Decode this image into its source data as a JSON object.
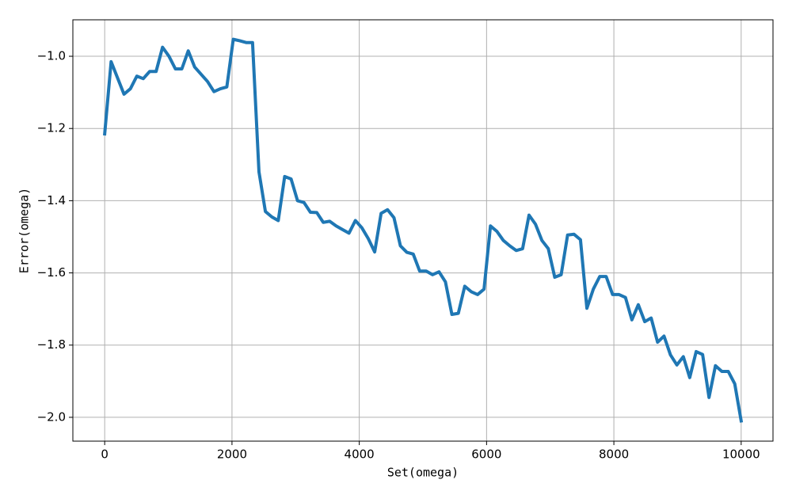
{
  "chart_data": {
    "type": "line",
    "xlabel": "Set(omega)",
    "ylabel": "Error(omega)",
    "x": [
      0,
      101,
      202,
      303,
      404,
      505,
      606,
      707,
      808,
      909,
      1010,
      1111,
      1212,
      1313,
      1414,
      1515,
      1616,
      1717,
      1818,
      1919,
      2020,
      2121,
      2222,
      2323,
      2424,
      2525,
      2626,
      2727,
      2828,
      2929,
      3030,
      3131,
      3232,
      3333,
      3434,
      3535,
      3636,
      3737,
      3838,
      3939,
      4040,
      4141,
      4242,
      4343,
      4444,
      4545,
      4646,
      4747,
      4848,
      4949,
      5051,
      5152,
      5253,
      5354,
      5455,
      5556,
      5657,
      5758,
      5859,
      5960,
      6061,
      6162,
      6263,
      6364,
      6465,
      6566,
      6667,
      6768,
      6869,
      6970,
      7071,
      7172,
      7273,
      7374,
      7475,
      7576,
      7677,
      7778,
      7879,
      7980,
      8081,
      8182,
      8283,
      8384,
      8485,
      8586,
      8687,
      8788,
      8889,
      8990,
      9091,
      9192,
      9293,
      9394,
      9495,
      9596,
      9697,
      9798,
      9899,
      10000
    ],
    "series": [
      {
        "color": "#1f77b4",
        "values": [
          -1.215,
          -1.015,
          -1.06,
          -1.105,
          -1.09,
          -1.055,
          -1.062,
          -1.042,
          -1.042,
          -0.975,
          -1.0,
          -1.035,
          -1.035,
          -0.985,
          -1.03,
          -1.05,
          -1.07,
          -1.098,
          -1.09,
          -1.085,
          -0.953,
          -0.957,
          -0.962,
          -0.962,
          -1.32,
          -1.43,
          -1.445,
          -1.455,
          -1.333,
          -1.34,
          -1.4,
          -1.405,
          -1.432,
          -1.433,
          -1.46,
          -1.457,
          -1.47,
          -1.48,
          -1.49,
          -1.455,
          -1.475,
          -1.505,
          -1.542,
          -1.435,
          -1.425,
          -1.447,
          -1.525,
          -1.543,
          -1.548,
          -1.595,
          -1.595,
          -1.605,
          -1.597,
          -1.625,
          -1.715,
          -1.712,
          -1.637,
          -1.652,
          -1.66,
          -1.645,
          -1.47,
          -1.485,
          -1.51,
          -1.525,
          -1.538,
          -1.533,
          -1.44,
          -1.465,
          -1.51,
          -1.533,
          -1.612,
          -1.605,
          -1.495,
          -1.493,
          -1.508,
          -1.698,
          -1.645,
          -1.61,
          -1.61,
          -1.66,
          -1.66,
          -1.668,
          -1.73,
          -1.688,
          -1.735,
          -1.725,
          -1.792,
          -1.775,
          -1.827,
          -1.855,
          -1.832,
          -1.89,
          -1.818,
          -1.826,
          -1.945,
          -1.857,
          -1.873,
          -1.873,
          -1.907,
          -2.01
        ]
      }
    ],
    "xlim": [
      -500,
      10500
    ],
    "ylim": [
      -2.066,
      -0.899
    ],
    "xticks": [
      0,
      2000,
      4000,
      6000,
      8000,
      10000
    ],
    "yticks": [
      {
        "value": -2.0,
        "label": "−2.0"
      },
      {
        "value": -1.8,
        "label": "−1.8"
      },
      {
        "value": -1.6,
        "label": "−1.6"
      },
      {
        "value": -1.4,
        "label": "−1.4"
      },
      {
        "value": -1.2,
        "label": "−1.2"
      },
      {
        "value": -1.0,
        "label": "−1.0"
      }
    ],
    "grid": true
  }
}
